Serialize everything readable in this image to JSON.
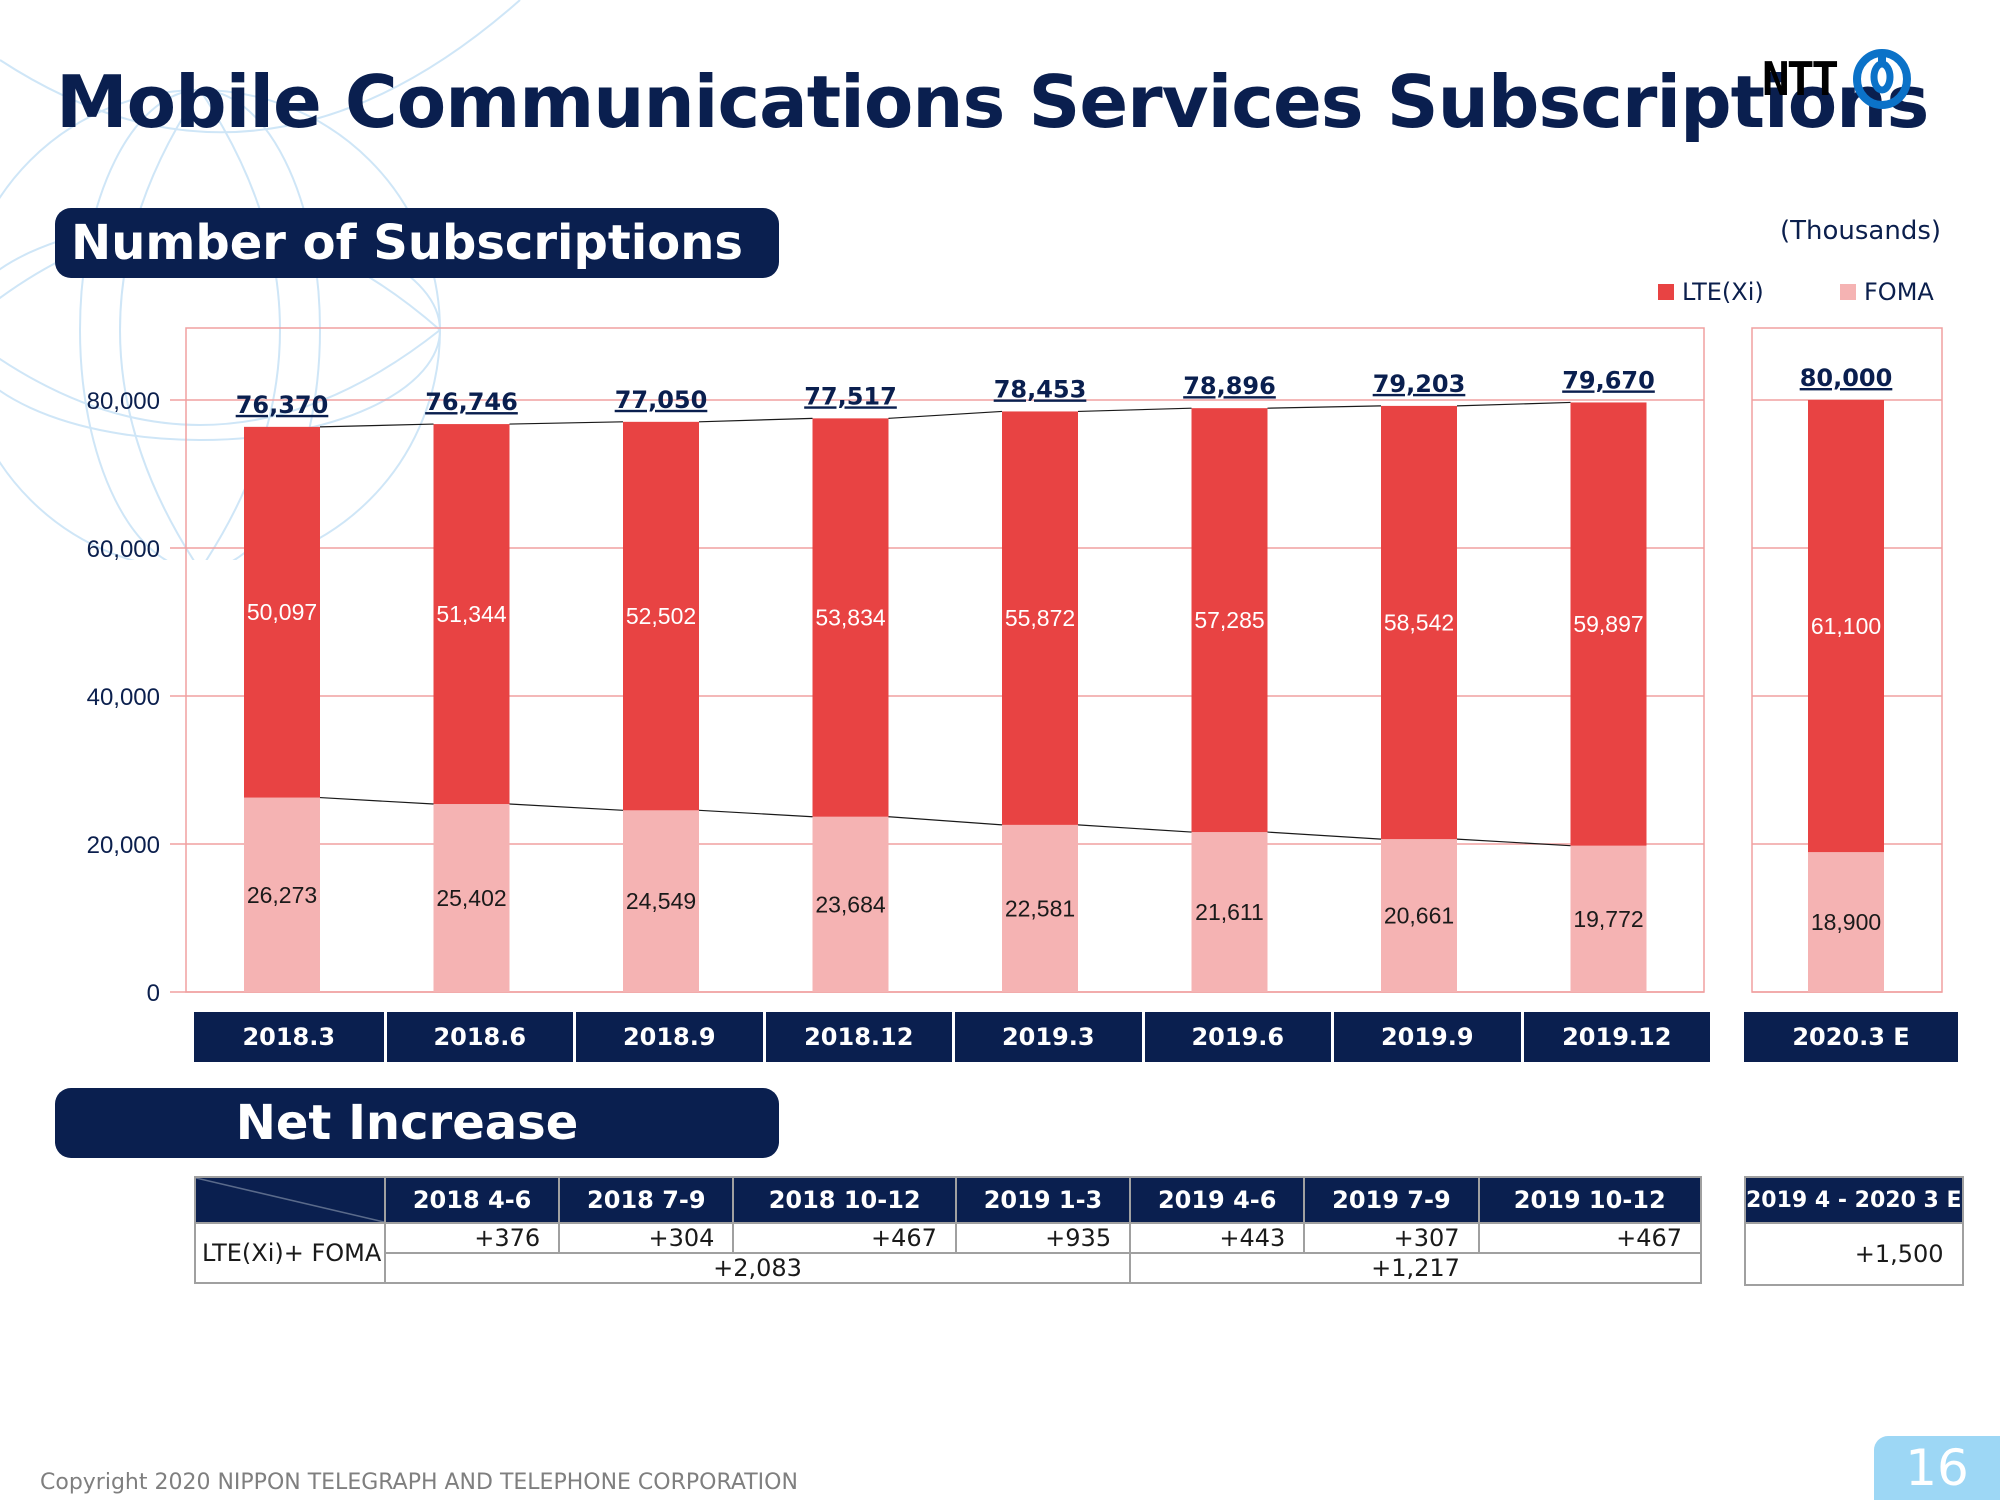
{
  "title": "Mobile Communications Services Subscriptions",
  "logo": {
    "text": "NTT",
    "icon": "ntt-swirl-logo-icon"
  },
  "sections": {
    "subscriptions": "Number of Subscriptions",
    "net_increase": "Net Increase"
  },
  "unit": "(Thousands)",
  "colors": {
    "lte": "#e84343",
    "foma": "#f5b3b3",
    "navy": "#0a1f4f",
    "grid": "#f0a0a0"
  },
  "chart_data": {
    "type": "bar",
    "stacked": true,
    "categories": [
      "2018.3",
      "2018.6",
      "2018.9",
      "2018.12",
      "2019.3",
      "2019.6",
      "2019.9",
      "2019.12"
    ],
    "series": [
      {
        "name": "LTE(Xi)",
        "values": [
          50097,
          51344,
          52502,
          53834,
          55872,
          57285,
          58542,
          59897
        ]
      },
      {
        "name": "FOMA",
        "values": [
          26273,
          25402,
          24549,
          23684,
          22581,
          21611,
          20661,
          19772
        ]
      }
    ],
    "totals": [
      76370,
      76746,
      77050,
      77517,
      78453,
      78896,
      79203,
      79670
    ],
    "forecast": {
      "category": "2020.3 E",
      "lte": 61100,
      "foma": 18900,
      "total": 80000
    },
    "yticks": [
      0,
      20000,
      40000,
      60000,
      80000
    ],
    "ylim": [
      0,
      90000
    ],
    "grid": true,
    "legend": "top-right"
  },
  "net_increase": {
    "row_label": "LTE(Xi)+ FOMA",
    "periods": [
      "2018 4-6",
      "2018 7-9",
      "2018 10-12",
      "2019 1-3",
      "2019 4-6",
      "2019 7-9",
      "2019 10-12"
    ],
    "values": [
      "+376",
      "+304",
      "+467",
      "+935",
      "+443",
      "+307",
      "+467"
    ],
    "subtotals": [
      "+2,083",
      "+1,217"
    ],
    "forecast_period": "2019 4 - 2020 3 E",
    "forecast_value": "+1,500"
  },
  "copyright": "Copyright 2020 NIPPON TELEGRAPH AND TELEPHONE CORPORATION",
  "page_number": "16"
}
